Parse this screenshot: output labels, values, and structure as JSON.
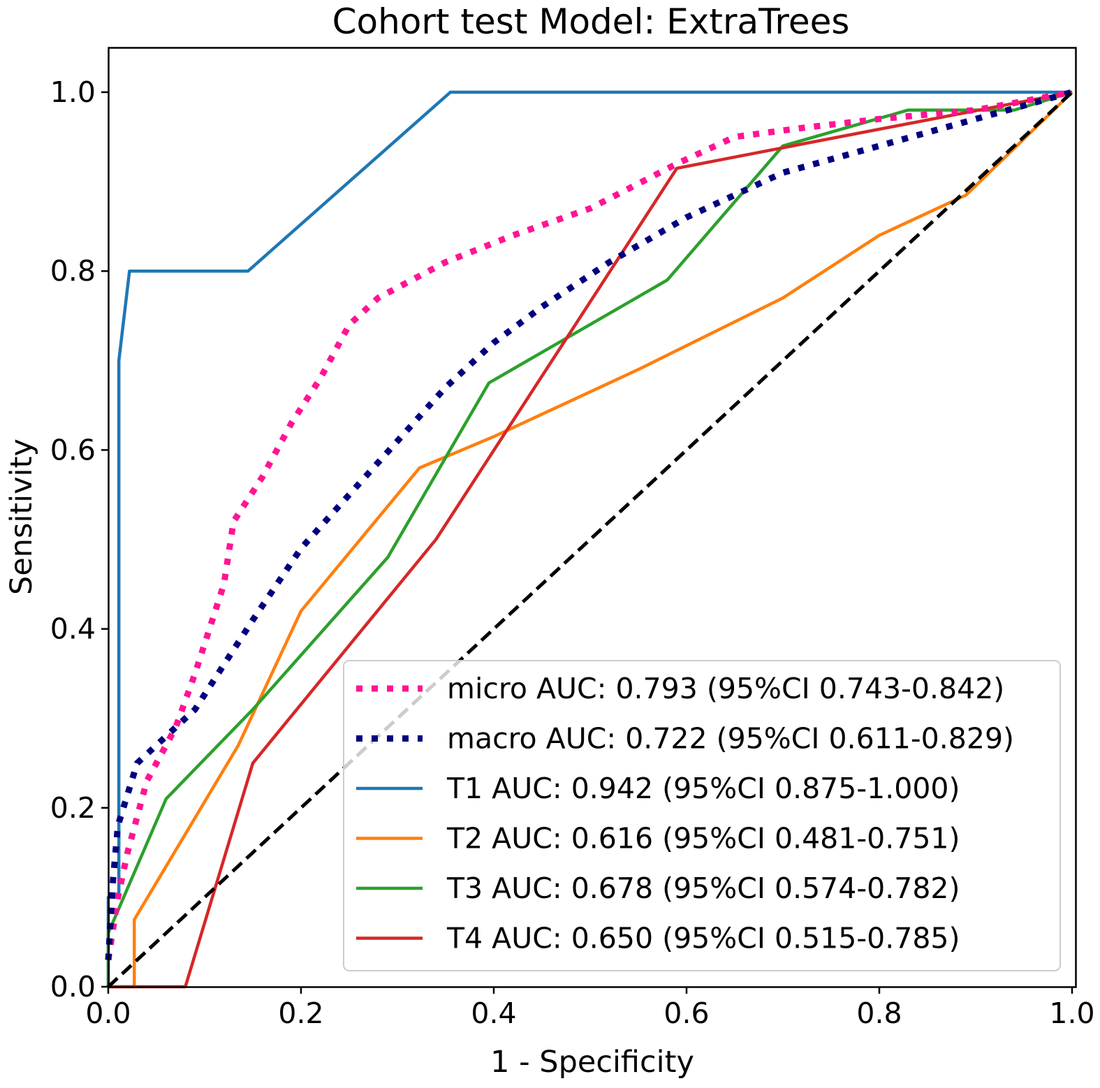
{
  "chart_data": {
    "type": "line",
    "title": "Cohort test Model: ExtraTrees",
    "xlabel": "1 - Specificity",
    "ylabel": "Sensitivity",
    "xlim": [
      0.0,
      1.0
    ],
    "ylim": [
      0.0,
      1.05
    ],
    "xticks": [
      "0.0",
      "0.2",
      "0.4",
      "0.6",
      "0.8",
      "1.0"
    ],
    "yticks": [
      "0.0",
      "0.2",
      "0.4",
      "0.6",
      "0.8",
      "1.0"
    ],
    "grid": false,
    "legend_position": "lower-right",
    "series": [
      {
        "name": "micro",
        "label": "micro AUC: 0.793 (95%CI 0.743-0.842)",
        "color": "#ff1493",
        "style": "dotted",
        "x": [
          0.0,
          0.01,
          0.02,
          0.04,
          0.07,
          0.09,
          0.12,
          0.13,
          0.16,
          0.19,
          0.22,
          0.25,
          0.28,
          0.35,
          0.42,
          0.5,
          0.59,
          0.65,
          0.72,
          0.8,
          0.9,
          1.0
        ],
        "y": [
          0.03,
          0.1,
          0.15,
          0.23,
          0.29,
          0.35,
          0.45,
          0.52,
          0.57,
          0.63,
          0.68,
          0.74,
          0.77,
          0.81,
          0.84,
          0.87,
          0.92,
          0.95,
          0.96,
          0.97,
          0.98,
          1.0
        ]
      },
      {
        "name": "macro",
        "label": "macro AUC: 0.722 (95%CI 0.611-0.829)",
        "color": "#000080",
        "style": "dotted",
        "x": [
          0.0,
          0.005,
          0.01,
          0.03,
          0.06,
          0.09,
          0.15,
          0.2,
          0.25,
          0.3,
          0.35,
          0.4,
          0.45,
          0.52,
          0.6,
          0.7,
          0.8,
          0.9,
          1.0
        ],
        "y": [
          0.03,
          0.12,
          0.18,
          0.25,
          0.28,
          0.31,
          0.41,
          0.49,
          0.55,
          0.61,
          0.67,
          0.72,
          0.76,
          0.81,
          0.86,
          0.91,
          0.94,
          0.97,
          1.0
        ]
      },
      {
        "name": "T1",
        "label": "T1 AUC: 0.942 (95%CI 0.875-1.000)",
        "color": "#1f77b4",
        "style": "solid",
        "x": [
          0.0,
          0.0,
          0.011,
          0.011,
          0.022,
          0.145,
          0.355,
          1.0
        ],
        "y": [
          0.0,
          0.1,
          0.1,
          0.7,
          0.8,
          0.8,
          1.0,
          1.0
        ]
      },
      {
        "name": "T2",
        "label": "T2 AUC: 0.616 (95%CI 0.481-0.751)",
        "color": "#ff7f0e",
        "style": "solid",
        "x": [
          0.0,
          0.027,
          0.027,
          0.135,
          0.2,
          0.323,
          0.4,
          0.55,
          0.7,
          0.8,
          0.89,
          1.0
        ],
        "y": [
          0.0,
          0.0,
          0.075,
          0.27,
          0.42,
          0.58,
          0.615,
          0.69,
          0.77,
          0.84,
          0.885,
          1.0
        ]
      },
      {
        "name": "T3",
        "label": "T3 AUC: 0.678 (95%CI 0.574-0.782)",
        "color": "#2ca02c",
        "style": "solid",
        "x": [
          0.0,
          0.0,
          0.06,
          0.15,
          0.29,
          0.395,
          0.58,
          0.7,
          0.83,
          0.94,
          1.0
        ],
        "y": [
          0.0,
          0.06,
          0.21,
          0.31,
          0.48,
          0.675,
          0.79,
          0.94,
          0.98,
          0.98,
          1.0
        ]
      },
      {
        "name": "T4",
        "label": "T4 AUC: 0.650 (95%CI 0.515-0.785)",
        "color": "#d62728",
        "style": "solid",
        "x": [
          0.0,
          0.08,
          0.15,
          0.34,
          0.59,
          0.71,
          1.0
        ],
        "y": [
          0.0,
          0.0,
          0.25,
          0.5,
          0.915,
          0.94,
          1.0
        ]
      },
      {
        "name": "chance",
        "label": "",
        "color": "#000000",
        "style": "dashed",
        "x": [
          0.0,
          1.0
        ],
        "y": [
          0.0,
          1.0
        ]
      }
    ]
  }
}
